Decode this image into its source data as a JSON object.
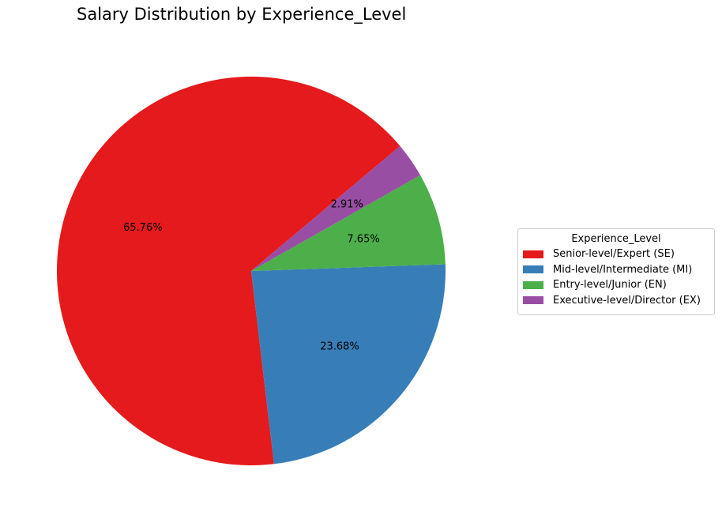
{
  "chart_data": {
    "type": "pie",
    "title": "Salary Distribution by Experience_Level",
    "legend": {
      "title": "Experience_Level",
      "placement": "center-right"
    },
    "slices": [
      {
        "label": "Senior-level/Expert (SE)",
        "value": 65.76,
        "display": "65.76%",
        "color": "#e41a1c"
      },
      {
        "label": "Mid-level/Intermediate (MI)",
        "value": 23.68,
        "display": "23.68%",
        "color": "#377eb8"
      },
      {
        "label": "Entry-level/Junior (EN)",
        "value": 7.65,
        "display": "7.65%",
        "color": "#4daf4a"
      },
      {
        "label": "Executive-level/Director (EX)",
        "value": 2.91,
        "display": "2.91%",
        "color": "#984ea3"
      }
    ],
    "start_angle_deg": 40,
    "direction": "counterclockwise"
  }
}
